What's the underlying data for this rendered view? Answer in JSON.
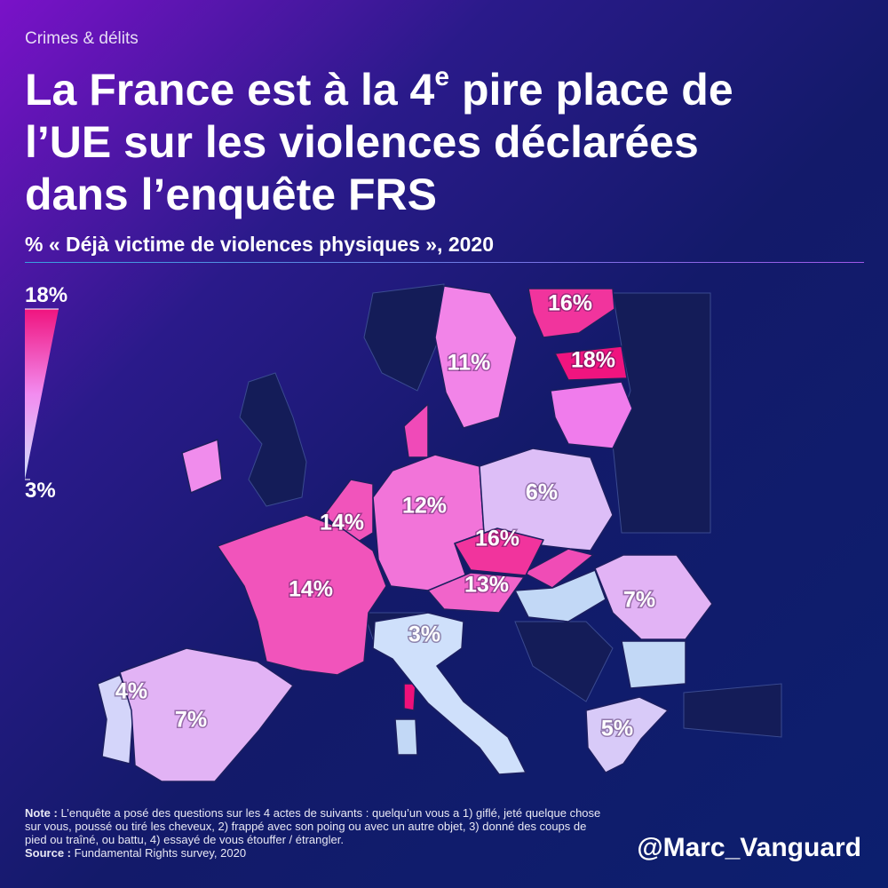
{
  "header": {
    "kicker": "Crimes & délits",
    "title_lines": [
      [
        "La France est à la 4",
        "e",
        " pire place de"
      ],
      [
        "l’UE sur les violences déclarées"
      ],
      [
        "dans l’enquête FRS"
      ]
    ],
    "subtitle": "% « Déjà victime de violences physiques », 2020"
  },
  "legend": {
    "max": {
      "value": 18,
      "label": "18%"
    },
    "min": {
      "value": 3,
      "label": "3%"
    },
    "colors": [
      "#cfe0fb",
      "#f28cf0",
      "#f0147f"
    ]
  },
  "map": {
    "regions": [
      {
        "value": 16,
        "label": "16%"
      },
      {
        "value": 18,
        "label": "18%"
      },
      {
        "value": 11,
        "label": "11%"
      },
      {
        "value": 14,
        "label": "14%"
      },
      {
        "value": 12,
        "label": "12%"
      },
      {
        "value": 6,
        "label": "6%"
      },
      {
        "value": 16,
        "label": "16%"
      },
      {
        "value": 13,
        "label": "13%"
      },
      {
        "value": 14,
        "label": "14%"
      },
      {
        "value": 7,
        "label": "7%"
      },
      {
        "value": 3,
        "label": "3%"
      },
      {
        "value": 4,
        "label": "4%"
      },
      {
        "value": 7,
        "label": "7%"
      },
      {
        "value": 5,
        "label": "5%"
      }
    ]
  },
  "note": {
    "label": "Note :",
    "text": "L’enquête a posé des questions sur les 4 actes de suivants : quelqu’un vous a 1) giflé, jeté quelque chose sur vous, poussé ou tiré les cheveux, 2) frappé avec son poing ou avec un autre objet, 3) donné des coups de pied ou traîné, ou battu, 4) essayé de vous étouffer / étrangler.",
    "source_label": "Source :",
    "source": "Fundamental Rights survey, 2020"
  },
  "credit": "@Marc_Vanguard"
}
